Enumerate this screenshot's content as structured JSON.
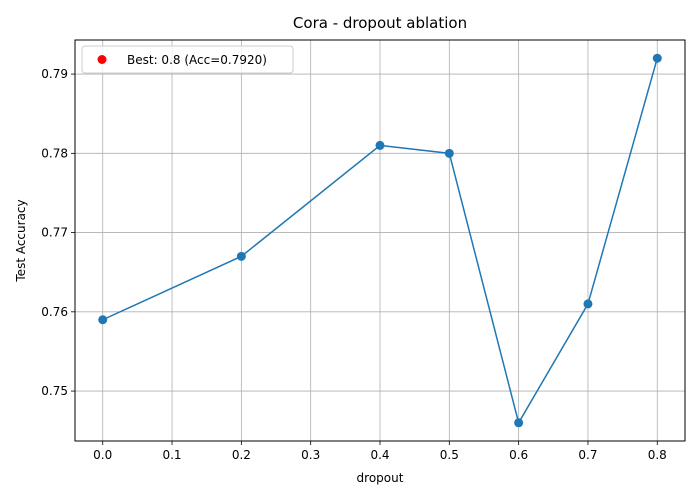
{
  "chart_data": {
    "type": "line",
    "title": "Cora - dropout ablation",
    "xlabel": "dropout",
    "ylabel": "Test Accuracy",
    "x": [
      0.0,
      0.2,
      0.4,
      0.5,
      0.6,
      0.7,
      0.8
    ],
    "series": [
      {
        "values": [
          0.759,
          0.767,
          0.781,
          0.78,
          0.746,
          0.761,
          0.792
        ],
        "color": "#1f77b4",
        "marker": "circle"
      }
    ],
    "xlim": [
      -0.04,
      0.84
    ],
    "ylim": [
      0.7437,
      0.7943
    ],
    "xticks": [
      0.0,
      0.1,
      0.2,
      0.3,
      0.4,
      0.5,
      0.6,
      0.7,
      0.8
    ],
    "xtick_labels": [
      "0.0",
      "0.1",
      "0.2",
      "0.3",
      "0.4",
      "0.5",
      "0.6",
      "0.7",
      "0.8"
    ],
    "yticks": [
      0.75,
      0.76,
      0.77,
      0.78,
      0.79
    ],
    "ytick_labels": [
      "0.75",
      "0.76",
      "0.77",
      "0.78",
      "0.79"
    ],
    "grid": true,
    "legend": {
      "placement": "top-left",
      "entries": [
        {
          "label": "Best: 0.8 (Acc=0.7920)",
          "color": "#ff0000",
          "marker": "circle"
        }
      ]
    }
  }
}
